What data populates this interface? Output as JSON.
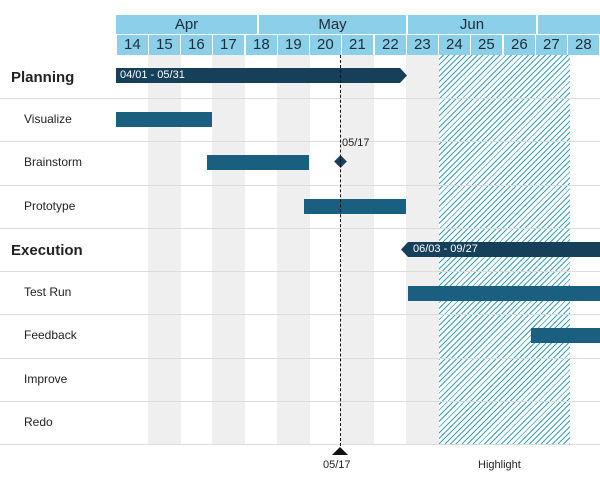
{
  "header": {
    "months": [
      "Apr",
      "May",
      "Jun"
    ],
    "weeks": [
      "14",
      "15",
      "16",
      "17",
      "18",
      "19",
      "20",
      "21",
      "22",
      "23",
      "24",
      "25",
      "26",
      "27",
      "28"
    ]
  },
  "rows": [
    {
      "label": "Planning",
      "kind": "phase"
    },
    {
      "label": "Visualize",
      "kind": "task"
    },
    {
      "label": "Brainstorm",
      "kind": "task"
    },
    {
      "label": "Prototype",
      "kind": "task"
    },
    {
      "label": "Execution",
      "kind": "phase"
    },
    {
      "label": "Test Run",
      "kind": "task"
    },
    {
      "label": "Feedback",
      "kind": "task"
    },
    {
      "label": "Improve",
      "kind": "task"
    },
    {
      "label": "Redo",
      "kind": "task"
    }
  ],
  "phases": {
    "planning_range": "04/01 - 05/31",
    "execution_range": "06/03 - 09/27"
  },
  "milestone": {
    "label": "05/17"
  },
  "today": {
    "label": "05/17"
  },
  "highlight": {
    "label": "Highlight"
  },
  "colors": {
    "header_bg": "#8ccfe8",
    "phase_bar": "#163f5a",
    "task_bar": "#1b5f80",
    "hatch": "#3aa0b6",
    "week_shade": "#efefef"
  }
}
